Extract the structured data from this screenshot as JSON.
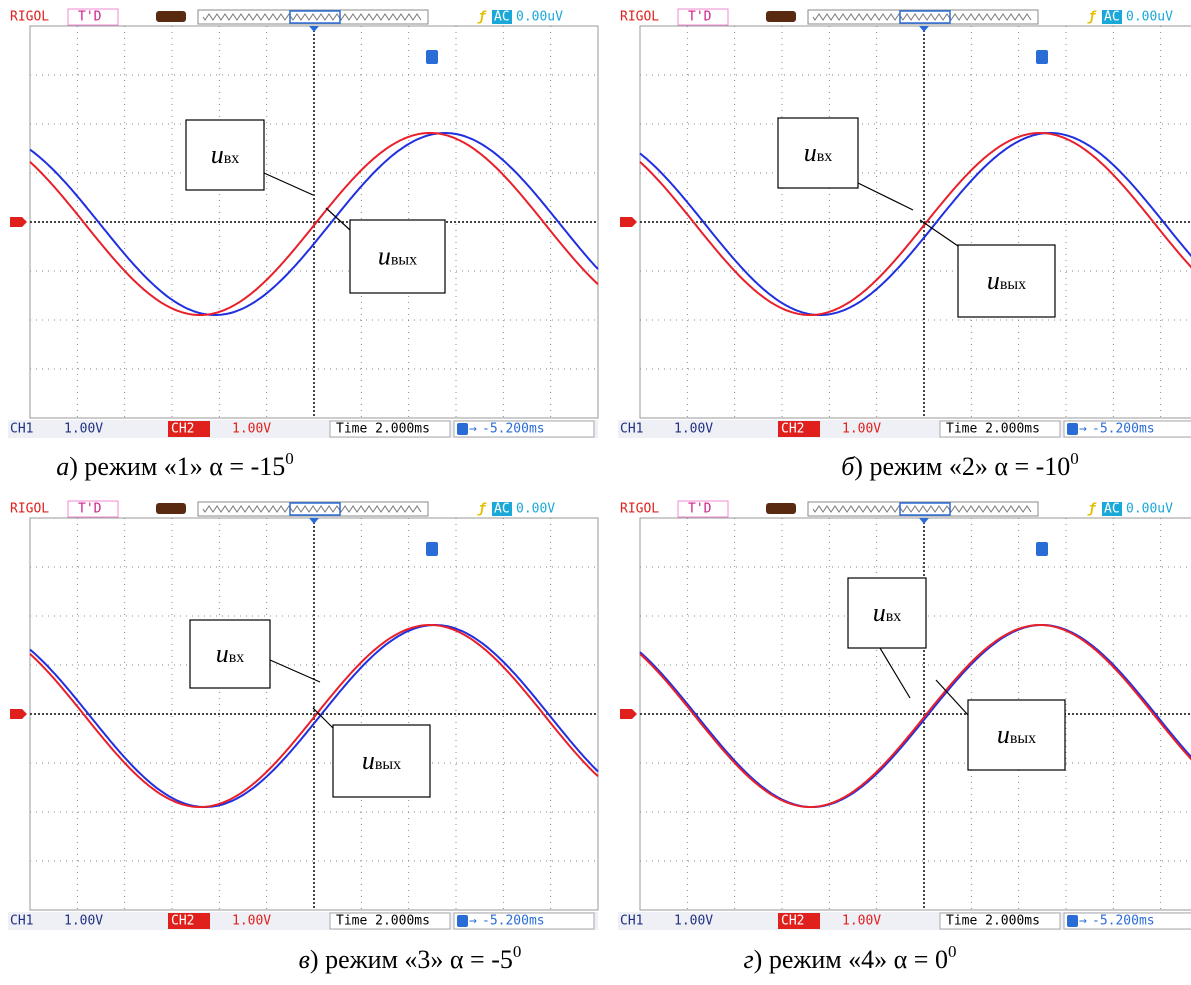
{
  "panels": [
    {
      "header": {
        "brand": "RIGOL",
        "mode": "T'D",
        "coupling": "AC",
        "offset": "0.00uV"
      },
      "footer": {
        "ch1": "CH1",
        "ch1_scale": "1.00V",
        "ch2": "CH2",
        "ch2_scale": "1.00V",
        "time": "Time 2.000ms",
        "delay": "-5.200ms"
      },
      "labels": {
        "input": {
          "symbol": "u",
          "subscript": "вх"
        },
        "output": {
          "symbol": "u",
          "subscript": "вых"
        }
      },
      "caption": {
        "letter": "а",
        "text": ") режим «1» α = -15",
        "superscript": "0"
      }
    },
    {
      "header": {
        "brand": "RIGOL",
        "mode": "T'D",
        "coupling": "AC",
        "offset": "0.00uV"
      },
      "footer": {
        "ch1": "CH1",
        "ch1_scale": "1.00V",
        "ch2": "CH2",
        "ch2_scale": "1.00V",
        "time": "Time 2.000ms",
        "delay": "-5.200ms"
      },
      "labels": {
        "input": {
          "symbol": "u",
          "subscript": "вх"
        },
        "output": {
          "symbol": "u",
          "subscript": "вых"
        }
      },
      "caption": {
        "letter": "б",
        "text": ") режим «2» α = -10",
        "superscript": "0"
      }
    },
    {
      "header": {
        "brand": "RIGOL",
        "mode": "T'D",
        "coupling": "AC",
        "offset": "0.00V"
      },
      "footer": {
        "ch1": "CH1",
        "ch1_scale": "1.00V",
        "ch2": "CH2",
        "ch2_scale": "1.00V",
        "time": "Time 2.000ms",
        "delay": "-5.200ms"
      },
      "labels": {
        "input": {
          "symbol": "u",
          "subscript": "вх"
        },
        "output": {
          "symbol": "u",
          "subscript": "вых"
        }
      },
      "caption": {
        "letter": "в",
        "text": ") режим «3» α = -5",
        "superscript": "0"
      }
    },
    {
      "header": {
        "brand": "RIGOL",
        "mode": "T'D",
        "coupling": "AC",
        "offset": "0.00uV"
      },
      "footer": {
        "ch1": "CH1",
        "ch1_scale": "1.00V",
        "ch2": "CH2",
        "ch2_scale": "1.00V",
        "time": "Time 2.000ms",
        "delay": "-5.200ms"
      },
      "labels": {
        "input": {
          "symbol": "u",
          "subscript": "вх"
        },
        "output": {
          "symbol": "u",
          "subscript": "вых"
        }
      },
      "caption": {
        "letter": "г",
        "text": ") режим «4» α = 0",
        "superscript": "0"
      }
    }
  ]
}
